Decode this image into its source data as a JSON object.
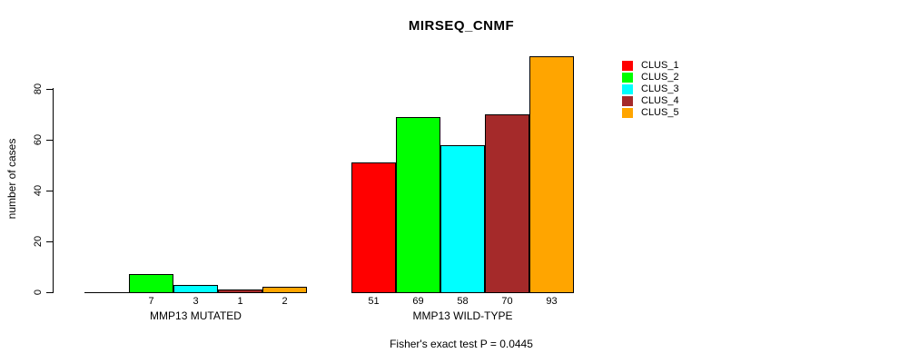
{
  "chart_data": {
    "type": "bar",
    "title": "MIRSEQ_CNMF",
    "ylabel": "number of cases",
    "xlabel": "",
    "ylim": [
      0,
      93
    ],
    "yticks": [
      0,
      20,
      40,
      60,
      80
    ],
    "grid": false,
    "legend_position": "right",
    "categories": [
      "MMP13 MUTATED",
      "MMP13 WILD-TYPE"
    ],
    "series": [
      {
        "name": "CLUS_1",
        "color": "#ff0000",
        "values": [
          0,
          51
        ]
      },
      {
        "name": "CLUS_2",
        "color": "#00ff00",
        "values": [
          7,
          69
        ]
      },
      {
        "name": "CLUS_3",
        "color": "#00ffff",
        "values": [
          3,
          58
        ]
      },
      {
        "name": "CLUS_4",
        "color": "#a52a2a",
        "values": [
          1,
          70
        ]
      },
      {
        "name": "CLUS_5",
        "color": "#ffa500",
        "values": [
          2,
          93
        ]
      }
    ],
    "bar_value_labels": [
      [
        "",
        "7",
        "3",
        "1",
        "2"
      ],
      [
        "51",
        "69",
        "58",
        "70",
        "93"
      ]
    ],
    "footnote": "Fisher's exact test P = 0.0445"
  }
}
